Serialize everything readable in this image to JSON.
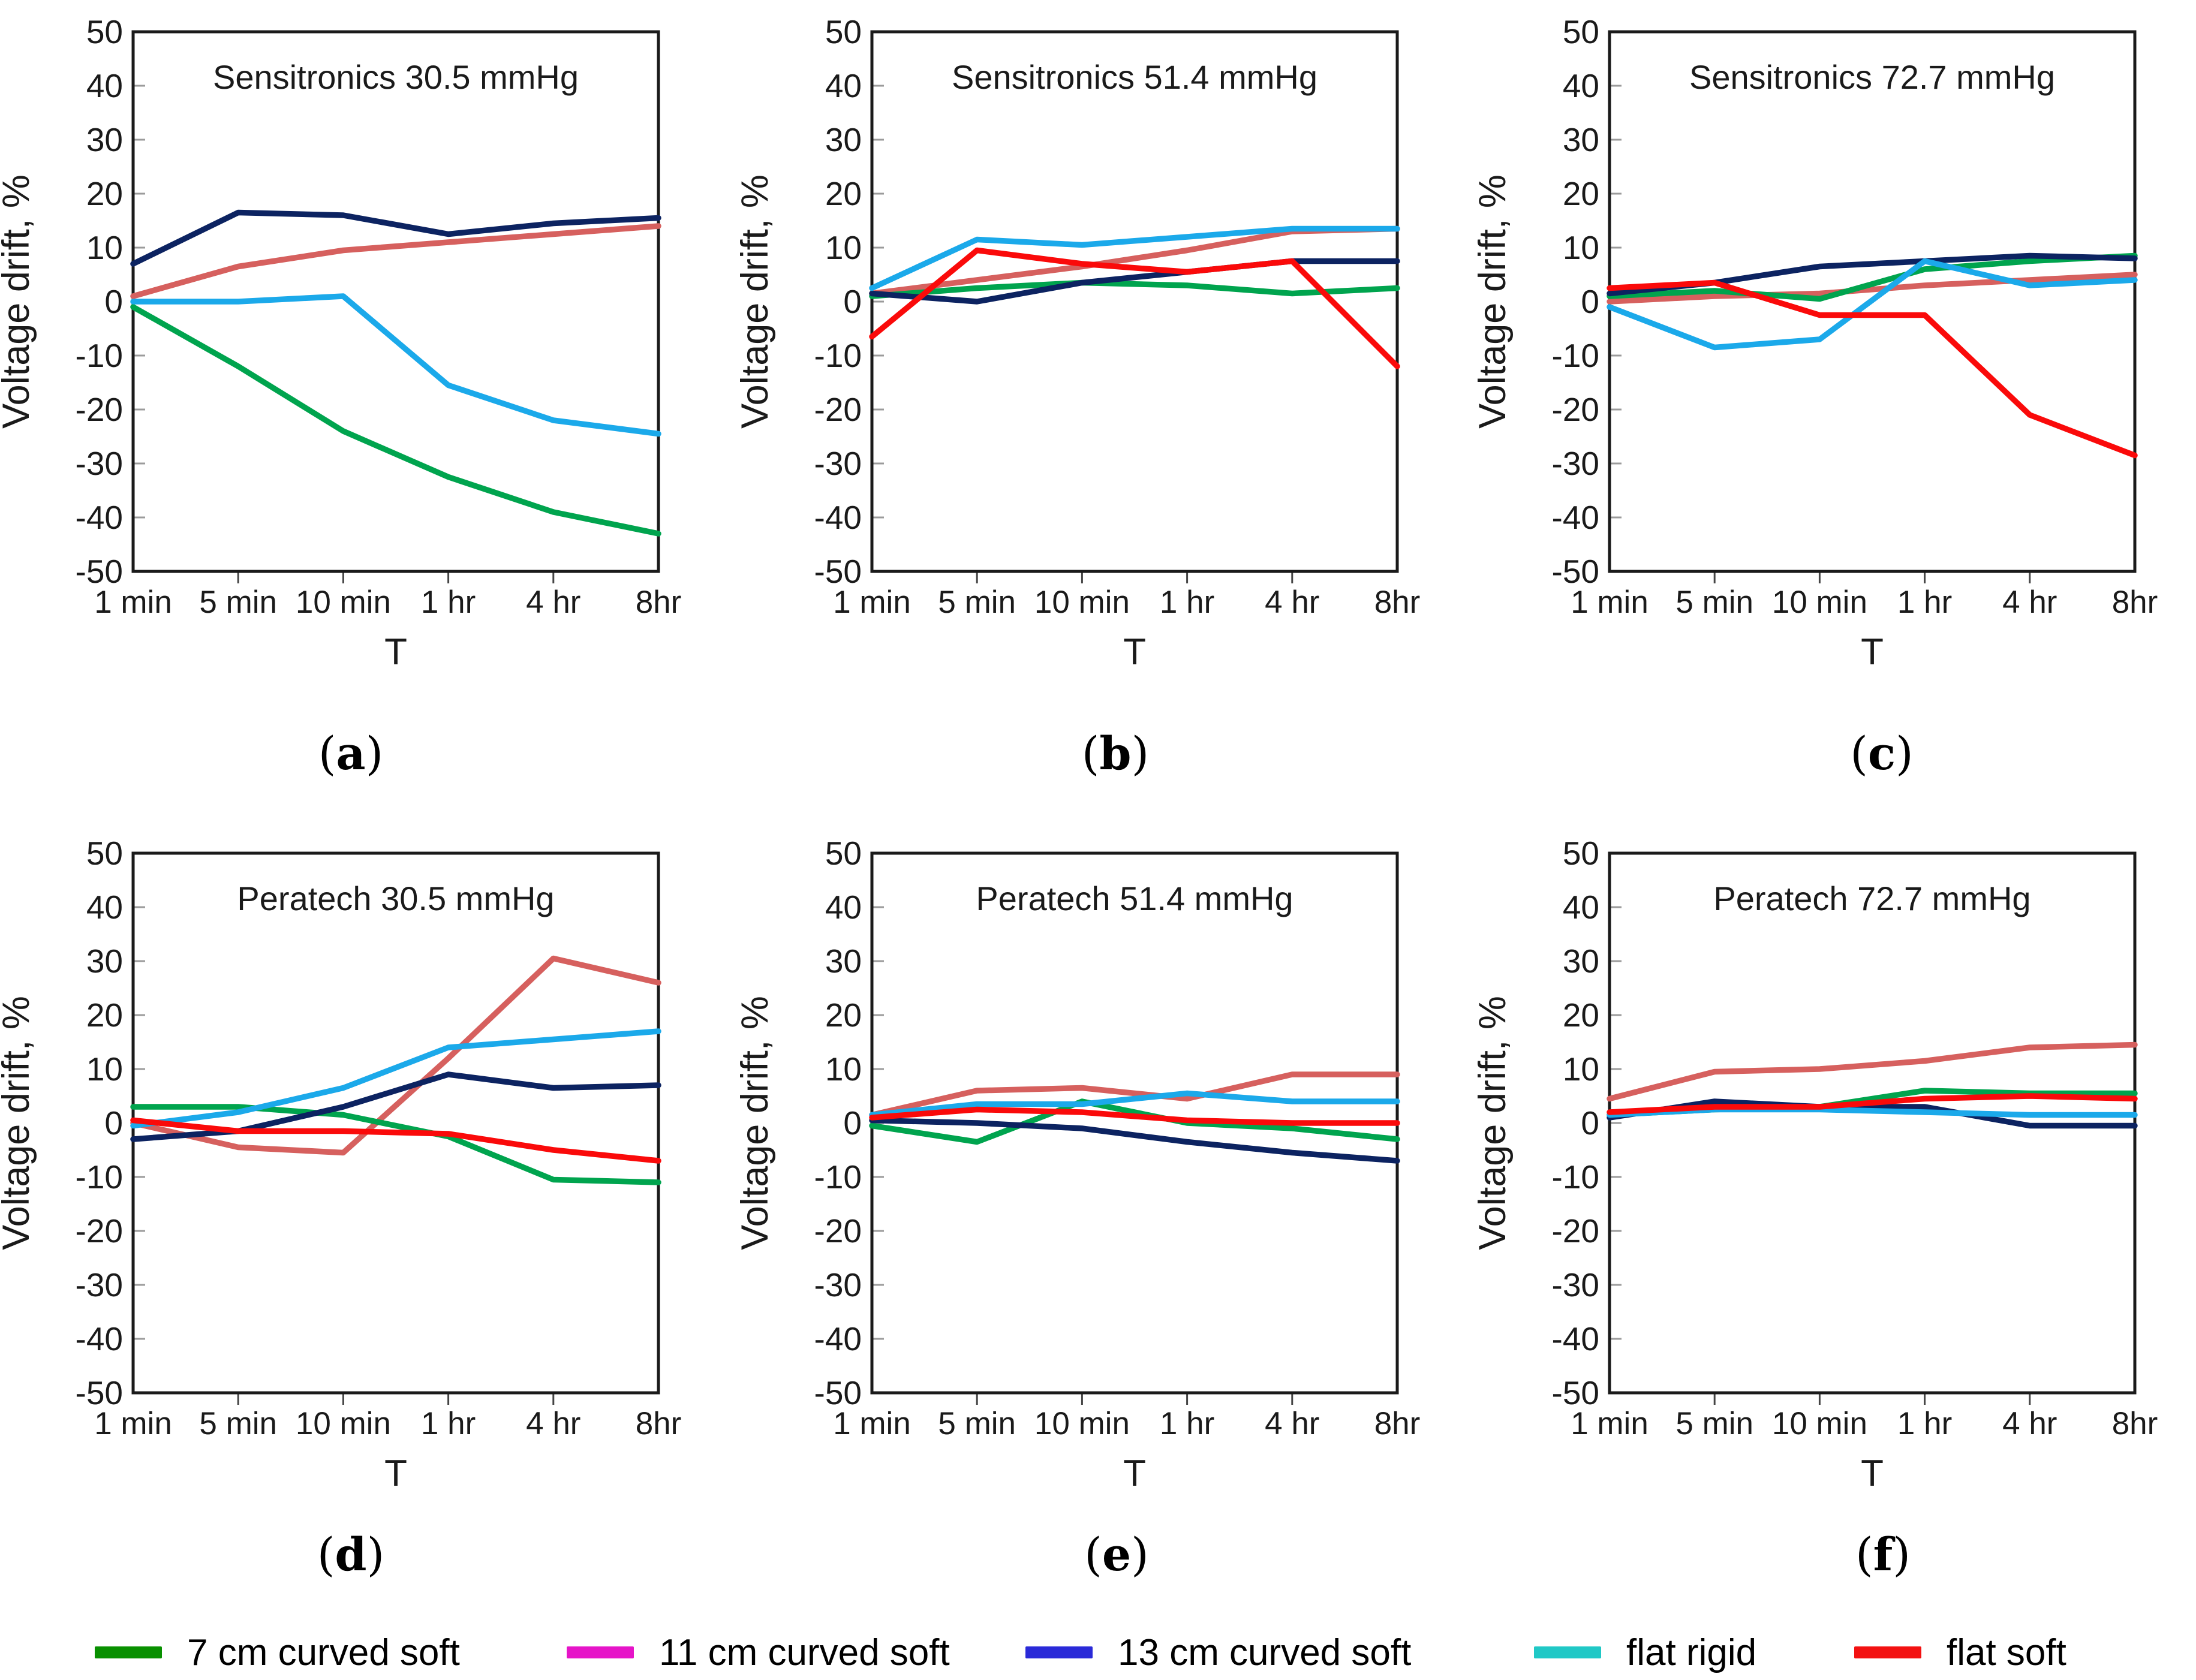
{
  "figure": {
    "ylabel": "Voltage drift, %",
    "xlabel": "T",
    "categories": [
      "1 min",
      "5 min",
      "10 min",
      "1 hr",
      "4 hr",
      "8hr"
    ],
    "ylim": [
      -50,
      50
    ],
    "ytick_step": 10,
    "caption_open": "(",
    "caption_close": ")"
  },
  "series_colors": {
    "7 cm curved soft": "#00a44e",
    "11 cm curved soft": "#d6605e",
    "13 cm curved soft": "#0c2361",
    "flat rigid": "#1ba9ea",
    "flat soft": "#fa0a0a"
  },
  "legend": {
    "items": [
      {
        "label": "7 cm curved soft",
        "color": "#089000"
      },
      {
        "label": "11 cm curved soft",
        "color": "#e614c8"
      },
      {
        "label": "13 cm curved soft",
        "color": "#2a2ad8"
      },
      {
        "label": "flat rigid",
        "color": "#20c8c6"
      },
      {
        "label": "flat soft",
        "color": "#f31111"
      }
    ]
  },
  "chart_data": [
    {
      "id": "a",
      "type": "line",
      "title": "Sensitronics  30.5 mmHg",
      "caption_letter": "a",
      "xlabel": "T",
      "ylabel": "Voltage drift, %",
      "ylim": [
        -50,
        50
      ],
      "grid": false,
      "categories": [
        "1 min",
        "5 min",
        "10 min",
        "1 hr",
        "4 hr",
        "8hr"
      ],
      "series": [
        {
          "name": "11 cm curved soft",
          "values": [
            1,
            6.5,
            9.5,
            11,
            12.5,
            14
          ]
        },
        {
          "name": "7 cm curved soft",
          "values": [
            -1,
            -12,
            -24,
            -32.5,
            -39,
            -43
          ]
        },
        {
          "name": "13 cm curved soft",
          "values": [
            7,
            16.5,
            16,
            12.5,
            14.5,
            15.5
          ]
        },
        {
          "name": "flat rigid",
          "values": [
            0,
            0,
            1,
            -15.5,
            -22,
            -24.5
          ]
        }
      ]
    },
    {
      "id": "b",
      "type": "line",
      "title": "Sensitronics  51.4 mmHg",
      "caption_letter": "b",
      "xlabel": "T",
      "ylabel": "Voltage drift, %",
      "ylim": [
        -50,
        50
      ],
      "grid": false,
      "categories": [
        "1 min",
        "5 min",
        "10 min",
        "1 hr",
        "4 hr",
        "8hr"
      ],
      "series": [
        {
          "name": "11 cm curved soft",
          "values": [
            1.5,
            4,
            6.5,
            9.5,
            13,
            13.5
          ]
        },
        {
          "name": "7 cm curved soft",
          "values": [
            1,
            2.5,
            3.5,
            3,
            1.5,
            2.5
          ]
        },
        {
          "name": "13 cm curved soft",
          "values": [
            1.5,
            0,
            3.5,
            5.5,
            7.5,
            7.5
          ]
        },
        {
          "name": "flat rigid",
          "values": [
            2.5,
            11.5,
            10.5,
            12,
            13.5,
            13.5
          ]
        },
        {
          "name": "flat soft",
          "values": [
            -6.5,
            9.5,
            7,
            5.5,
            7.5,
            -12
          ]
        }
      ]
    },
    {
      "id": "c",
      "type": "line",
      "title": "Sensitronics  72.7 mmHg",
      "caption_letter": "c",
      "xlabel": "T",
      "ylabel": "Voltage drift, %",
      "ylim": [
        -50,
        50
      ],
      "grid": false,
      "categories": [
        "1 min",
        "5 min",
        "10 min",
        "1 hr",
        "4 hr",
        "8hr"
      ],
      "series": [
        {
          "name": "11 cm curved soft",
          "values": [
            0,
            1,
            1.5,
            3,
            4,
            5
          ]
        },
        {
          "name": "7 cm curved soft",
          "values": [
            1,
            2,
            0.5,
            6,
            7.5,
            8.5
          ]
        },
        {
          "name": "13 cm curved soft",
          "values": [
            1.5,
            3.5,
            6.5,
            7.5,
            8.5,
            8
          ]
        },
        {
          "name": "flat rigid",
          "values": [
            -1,
            -8.5,
            -7,
            7.5,
            3,
            4
          ]
        },
        {
          "name": "flat soft",
          "values": [
            2.5,
            3.5,
            -2.5,
            -2.5,
            -21,
            -28.5
          ]
        }
      ]
    },
    {
      "id": "d",
      "type": "line",
      "title": "Peratech  30.5 mmHg",
      "caption_letter": "d",
      "xlabel": "T",
      "ylabel": "Voltage drift, %",
      "ylim": [
        -50,
        50
      ],
      "grid": false,
      "categories": [
        "1 min",
        "5 min",
        "10 min",
        "1 hr",
        "4 hr",
        "8hr"
      ],
      "series": [
        {
          "name": "11 cm curved soft",
          "values": [
            0,
            -4.5,
            -5.5,
            12,
            30.5,
            26
          ]
        },
        {
          "name": "7 cm curved soft",
          "values": [
            3,
            3,
            1.5,
            -2.5,
            -10.5,
            -11
          ]
        },
        {
          "name": "13 cm curved soft",
          "values": [
            -3,
            -1.5,
            3,
            9,
            6.5,
            7
          ]
        },
        {
          "name": "flat rigid",
          "values": [
            -0.5,
            2,
            6.5,
            14,
            15.5,
            17
          ]
        },
        {
          "name": "flat soft",
          "values": [
            0.5,
            -1.5,
            -1.5,
            -2,
            -5,
            -7
          ]
        }
      ]
    },
    {
      "id": "e",
      "type": "line",
      "title": "Peratech  51.4 mmHg",
      "caption_letter": "e",
      "xlabel": "T",
      "ylabel": "Voltage drift, %",
      "ylim": [
        -50,
        50
      ],
      "grid": false,
      "categories": [
        "1 min",
        "5 min",
        "10 min",
        "1 hr",
        "4 hr",
        "8hr"
      ],
      "series": [
        {
          "name": "11 cm curved soft",
          "values": [
            1.5,
            6,
            6.5,
            4.5,
            9,
            9
          ]
        },
        {
          "name": "7 cm curved soft",
          "values": [
            -0.5,
            -3.5,
            4,
            0,
            -1,
            -3
          ]
        },
        {
          "name": "13 cm curved soft",
          "values": [
            0.5,
            0,
            -1,
            -3.5,
            -5.5,
            -7
          ]
        },
        {
          "name": "flat rigid",
          "values": [
            1.5,
            3.5,
            3.5,
            5.5,
            4,
            4
          ]
        },
        {
          "name": "flat soft",
          "values": [
            1,
            2.5,
            2,
            0.5,
            0,
            0
          ]
        }
      ]
    },
    {
      "id": "f",
      "type": "line",
      "title": "Peratech  72.7 mmHg",
      "caption_letter": "f",
      "xlabel": "T",
      "ylabel": "Voltage drift, %",
      "ylim": [
        -50,
        50
      ],
      "grid": false,
      "categories": [
        "1 min",
        "5 min",
        "10 min",
        "1 hr",
        "4 hr",
        "8hr"
      ],
      "series": [
        {
          "name": "11 cm curved soft",
          "values": [
            4.5,
            9.5,
            10,
            11.5,
            14,
            14.5
          ]
        },
        {
          "name": "7 cm curved soft",
          "values": [
            1.5,
            2.5,
            3,
            6,
            5.5,
            5.5
          ]
        },
        {
          "name": "13 cm curved soft",
          "values": [
            1,
            4,
            3,
            3,
            -0.5,
            -0.5
          ]
        },
        {
          "name": "flat rigid",
          "values": [
            1.5,
            2.5,
            2.5,
            2,
            1.5,
            1.5
          ]
        },
        {
          "name": "flat soft",
          "values": [
            2,
            3,
            3,
            4.5,
            5,
            4.5
          ]
        }
      ]
    }
  ]
}
